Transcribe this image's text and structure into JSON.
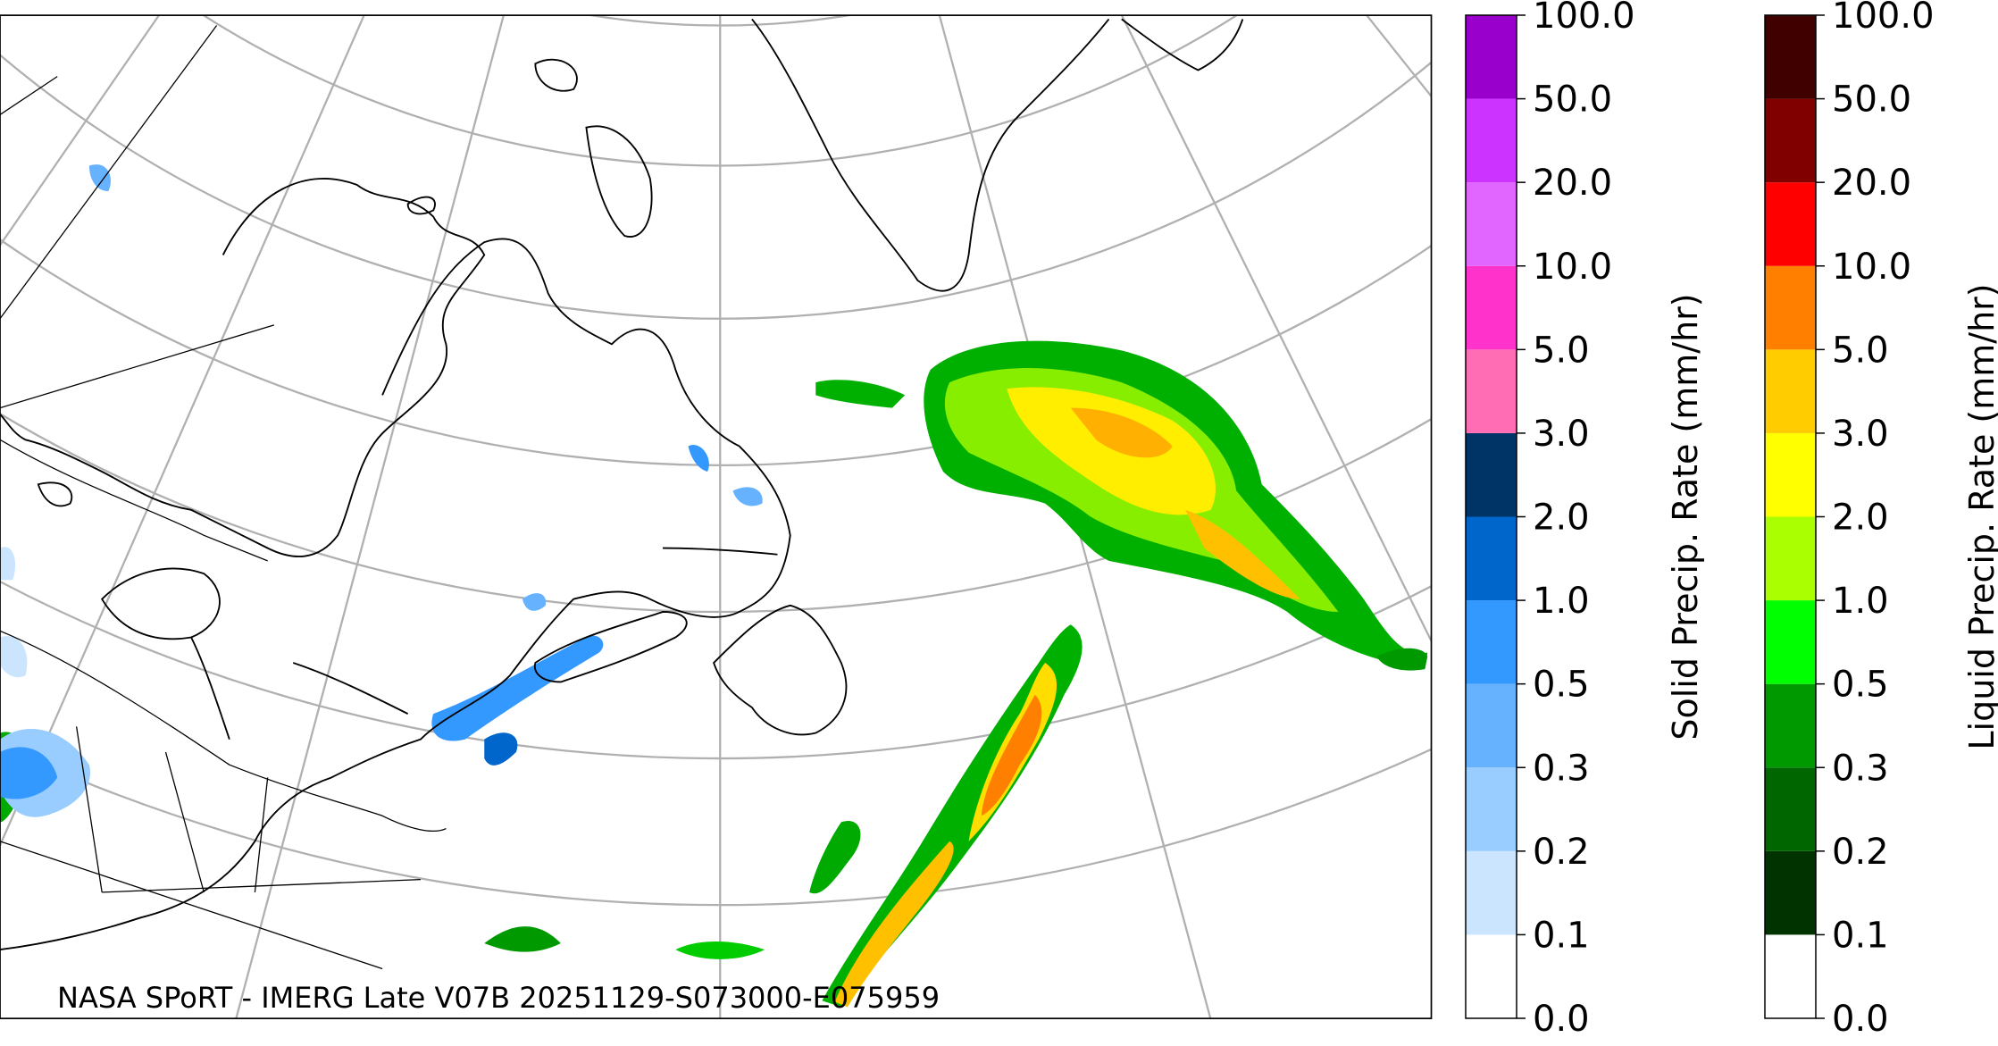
{
  "caption": "NASA SPoRT - IMERG Late V07B 20251129-S073000-E075959",
  "colorbars": [
    {
      "label": "Solid Precip. Rate (mm/hr)",
      "colors": [
        "#ffffff",
        "#cce5ff",
        "#99ccff",
        "#66b2ff",
        "#3399ff",
        "#0066cc",
        "#003366",
        "#ff6eb4",
        "#ff33cc",
        "#e066ff",
        "#cc33ff",
        "#9900cc"
      ],
      "ticks": [
        {
          "value": 0,
          "label": "0.0"
        },
        {
          "value": 0.1,
          "label": "0.1"
        },
        {
          "value": 0.2,
          "label": "0.2"
        },
        {
          "value": 0.3,
          "label": "0.3"
        },
        {
          "value": 0.5,
          "label": "0.5"
        },
        {
          "value": 1,
          "label": "1.0"
        },
        {
          "value": 2,
          "label": "2.0"
        },
        {
          "value": 3,
          "label": "3.0"
        },
        {
          "value": 5,
          "label": "5.0"
        },
        {
          "value": 10,
          "label": "10.0"
        },
        {
          "value": 20,
          "label": "20.0"
        },
        {
          "value": 50,
          "label": "50.0"
        },
        {
          "value": 100,
          "label": "100.0"
        }
      ]
    },
    {
      "label": "Liquid Precip. Rate (mm/hr)",
      "colors": [
        "#ffffff",
        "#003300",
        "#006600",
        "#009900",
        "#00ff00",
        "#aaff00",
        "#ffff00",
        "#ffcc00",
        "#ff8000",
        "#ff0000",
        "#800000",
        "#400000"
      ],
      "ticks": [
        {
          "value": 0,
          "label": "0.0"
        },
        {
          "value": 0.1,
          "label": "0.1"
        },
        {
          "value": 0.2,
          "label": "0.2"
        },
        {
          "value": 0.3,
          "label": "0.3"
        },
        {
          "value": 0.5,
          "label": "0.5"
        },
        {
          "value": 1,
          "label": "1.0"
        },
        {
          "value": 2,
          "label": "2.0"
        },
        {
          "value": 3,
          "label": "3.0"
        },
        {
          "value": 5,
          "label": "5.0"
        },
        {
          "value": 10,
          "label": "10.0"
        },
        {
          "value": 20,
          "label": "20.0"
        },
        {
          "value": 50,
          "label": "50.0"
        },
        {
          "value": 100,
          "label": "100.0"
        }
      ]
    }
  ]
}
